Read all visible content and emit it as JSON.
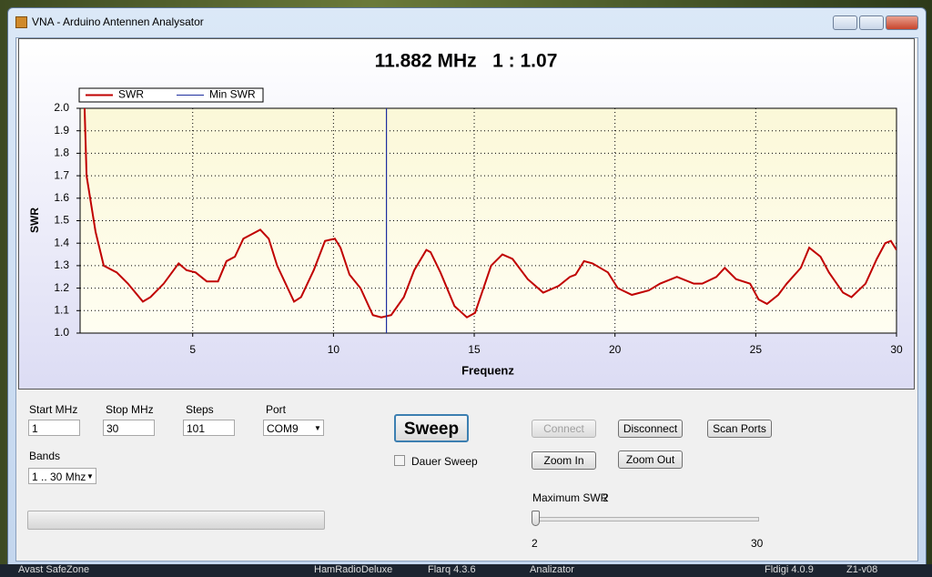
{
  "window": {
    "title": "VNA - Arduino Antennen Analysator"
  },
  "chart_data": {
    "type": "line",
    "title": "11.882 MHz   1 : 1.07",
    "x_label": "Frequenz",
    "y_label": "SWR",
    "x": [
      1.16,
      1.23,
      1.55,
      1.84,
      2.3,
      2.7,
      3.23,
      3.5,
      3.97,
      4.5,
      4.78,
      5.1,
      5.5,
      5.9,
      6.2,
      6.5,
      6.8,
      7.4,
      7.7,
      8.0,
      8.6,
      8.85,
      9.3,
      9.7,
      10.05,
      10.25,
      10.57,
      10.96,
      11.4,
      11.7,
      12.05,
      12.5,
      12.87,
      13.3,
      13.45,
      13.8,
      14.3,
      14.74,
      15.03,
      15.6,
      16.0,
      16.36,
      16.9,
      17.45,
      18.0,
      18.4,
      18.6,
      18.9,
      19.2,
      19.75,
      20.1,
      20.6,
      21.2,
      21.6,
      22.2,
      22.8,
      23.1,
      23.6,
      23.9,
      24.3,
      24.8,
      25.1,
      25.4,
      25.8,
      26.1,
      26.6,
      26.9,
      27.3,
      27.6,
      28.1,
      28.4,
      28.9,
      29.3,
      29.6,
      29.8,
      30
    ],
    "series": [
      {
        "name": "SWR",
        "color": "#c00000",
        "values": [
          2.0,
          1.7,
          1.45,
          1.3,
          1.27,
          1.22,
          1.14,
          1.16,
          1.22,
          1.31,
          1.28,
          1.27,
          1.23,
          1.23,
          1.32,
          1.34,
          1.42,
          1.46,
          1.42,
          1.3,
          1.14,
          1.16,
          1.28,
          1.41,
          1.42,
          1.38,
          1.26,
          1.2,
          1.08,
          1.07,
          1.08,
          1.16,
          1.28,
          1.37,
          1.36,
          1.27,
          1.12,
          1.07,
          1.09,
          1.3,
          1.35,
          1.33,
          1.24,
          1.18,
          1.21,
          1.25,
          1.26,
          1.32,
          1.31,
          1.27,
          1.2,
          1.17,
          1.19,
          1.22,
          1.25,
          1.22,
          1.22,
          1.25,
          1.29,
          1.24,
          1.22,
          1.15,
          1.13,
          1.17,
          1.22,
          1.29,
          1.38,
          1.34,
          1.27,
          1.18,
          1.16,
          1.22,
          1.33,
          1.4,
          1.41,
          1.37
        ]
      },
      {
        "name": "Min SWR",
        "color": "#1f2f9f",
        "vline": 11.882
      }
    ],
    "xlim": [
      1,
      30
    ],
    "xticks": [
      5,
      10,
      15,
      20,
      25,
      30
    ],
    "ylim": [
      1,
      2
    ],
    "yticks": [
      {
        "value": 1,
        "label": "1.0"
      },
      1.1,
      1.2,
      1.3,
      1.4,
      1.5,
      1.6,
      1.7,
      1.8,
      1.9,
      {
        "value": 2,
        "label": "2.0"
      }
    ],
    "grid": true,
    "legend": "top-left"
  },
  "controls": {
    "start": {
      "label": "Start MHz",
      "value": "1"
    },
    "stop": {
      "label": "Stop MHz",
      "value": "30"
    },
    "steps": {
      "label": "Steps",
      "value": "101"
    },
    "port": {
      "label": "Port",
      "value": "COM9"
    },
    "bands": {
      "label": "Bands",
      "value": "1 .. 30 Mhz"
    },
    "sweep": "Sweep",
    "dauer_sweep": "Dauer Sweep",
    "connect": "Connect",
    "disconnect": "Disconnect",
    "scan_ports": "Scan Ports",
    "zoom_in": "Zoom In",
    "zoom_out": "Zoom Out",
    "max_swr": {
      "label": "Maximum SWR",
      "value": 2,
      "min": 2,
      "max": 30
    }
  },
  "taskbar": [
    "Avast SafeZone",
    "HamRadioDeluxe",
    "Flarq 4.3.6",
    "Analizator",
    "Fldigi 4.0.9",
    "Z1-v08"
  ]
}
